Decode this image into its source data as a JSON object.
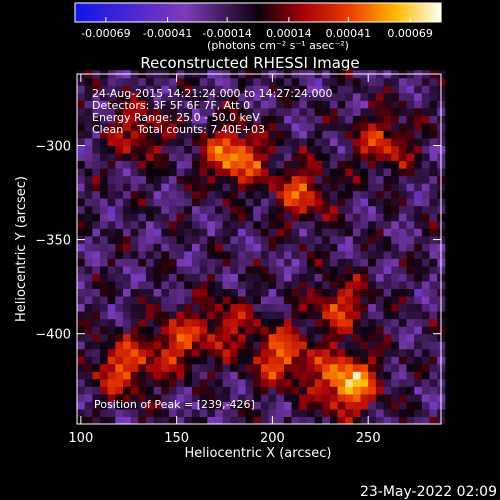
{
  "chart_data": {
    "type": "heatmap",
    "title": "Reconstructed RHESSI Image",
    "xlabel": "Heliocentric X (arcsec)",
    "ylabel": "Heliocentric Y (arcsec)",
    "xlim": [
      98,
      288
    ],
    "ylim": [
      -448,
      -262
    ],
    "xticks": [
      100,
      150,
      200,
      250
    ],
    "yticks": [
      -300,
      -350,
      -400
    ],
    "colorbar": {
      "range": [
        -0.00083,
        0.00083
      ],
      "ticks": [
        {
          "v": -0.00069,
          "label": "-0.00069"
        },
        {
          "v": -0.00041,
          "label": "-0.00041"
        },
        {
          "v": -0.00014,
          "label": "-0.00014"
        },
        {
          "v": 0.00014,
          "label": "0.00014"
        },
        {
          "v": 0.00041,
          "label": "0.00041"
        },
        {
          "v": 0.00069,
          "label": "0.00069"
        }
      ],
      "unit_label": "(photons cm⁻² s⁻¹ asec⁻²)"
    },
    "annotations": [
      "24-Aug-2015 14:21:24.000 to 14:27:24.000",
      "Detectors: 3F 5F 6F 7F, Att 0",
      "Energy Range: 25.0 - 50.0 keV",
      "Clean    Total counts: 7.40E+03"
    ],
    "peak_label": "Position of Peak = [239,-426]",
    "peak": [
      239,
      -426
    ],
    "sources": [
      {
        "x": 239,
        "y": -426,
        "peak": 1.0
      },
      {
        "x": 180,
        "y": -305,
        "peak": 0.85
      },
      {
        "x": 205,
        "y": -412,
        "peak": 0.7
      },
      {
        "x": 122,
        "y": -418,
        "peak": 0.65
      },
      {
        "x": 215,
        "y": -325,
        "peak": 0.6
      },
      {
        "x": 258,
        "y": -298,
        "peak": 0.55
      },
      {
        "x": 150,
        "y": -405,
        "peak": 0.55
      },
      {
        "x": 235,
        "y": -385,
        "peak": 0.55
      },
      {
        "x": 175,
        "y": -395,
        "peak": 0.45
      },
      {
        "x": 130,
        "y": -292,
        "peak": 0.5
      }
    ]
  },
  "footer": {
    "timestamp": "23-May-2022 02:09"
  }
}
